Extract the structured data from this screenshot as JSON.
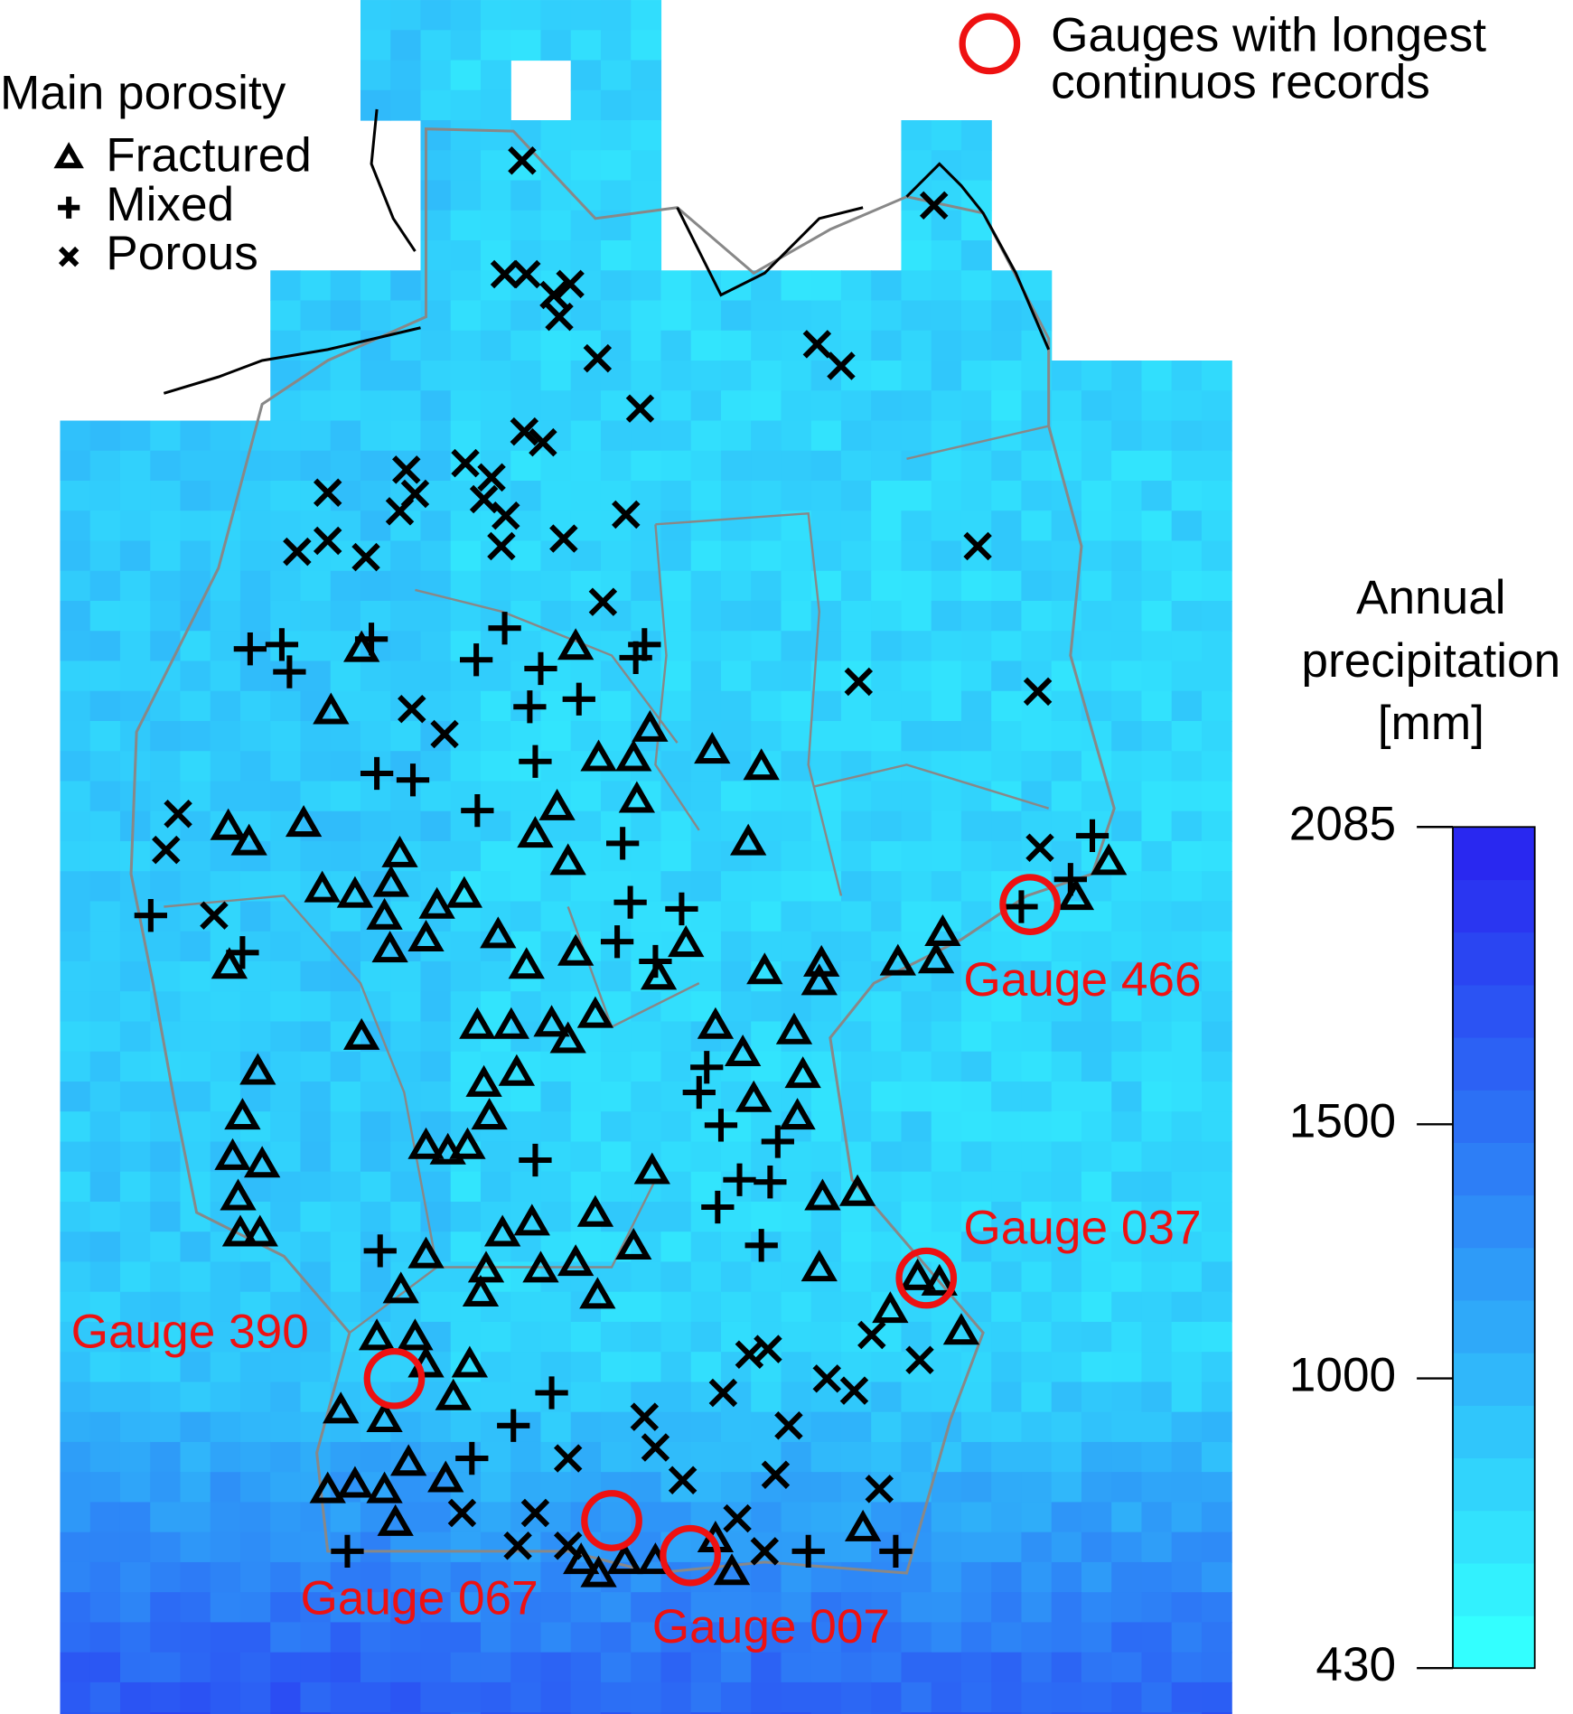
{
  "legend": {
    "title": "Main porosity",
    "items": [
      "Fractured",
      "Mixed",
      "Porous"
    ]
  },
  "gauge_legend": [
    "Gauges with longest",
    "continuos records"
  ],
  "gauges": [
    "Gauge 466",
    "Gauge 037",
    "Gauge 390",
    "Gauge 067",
    "Gauge 007"
  ],
  "colorbar": {
    "title": [
      "Annual",
      "precipitation",
      "[mm]"
    ],
    "range": [
      430,
      2085
    ],
    "ticks": [
      2085,
      1500,
      1000,
      430
    ]
  }
}
